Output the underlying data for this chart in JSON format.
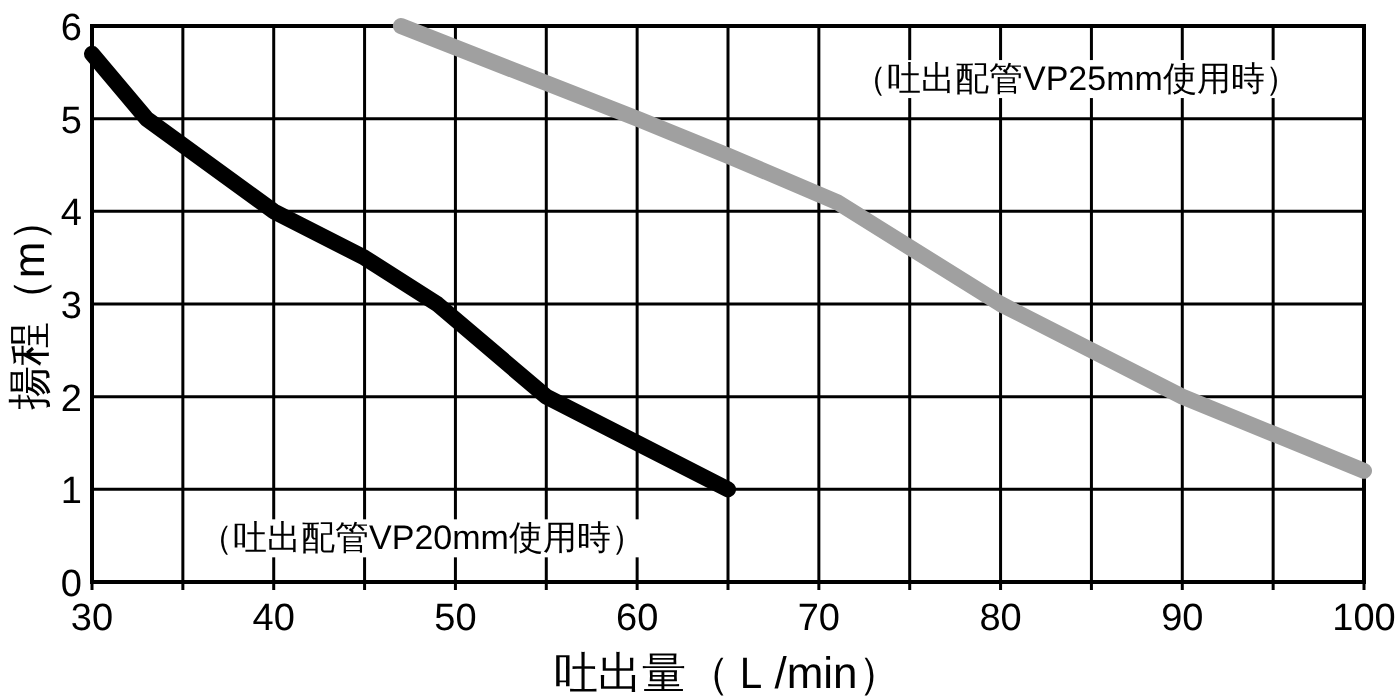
{
  "chart_data": {
    "type": "line",
    "xlabel": "吐出量（Ｌ/min）",
    "ylabel": "揚程（m）",
    "xlim": [
      30,
      100
    ],
    "ylim": [
      0,
      6
    ],
    "xticks": [
      30,
      {
        "value": 35,
        "label": null
      },
      40,
      {
        "value": 45,
        "label": null
      },
      50,
      {
        "value": 55,
        "label": null
      },
      60,
      {
        "value": 65,
        "label": null
      },
      70,
      {
        "value": 75,
        "label": null
      },
      80,
      {
        "value": 85,
        "label": null
      },
      90,
      {
        "value": 95,
        "label": null
      },
      100
    ],
    "yticks": [
      0,
      1,
      2,
      3,
      4,
      5,
      6
    ],
    "grid": true,
    "marker": "none",
    "line_style": "solid",
    "series": [
      {
        "name": "（吐出配管VP20mm使用時）",
        "color": "#000000",
        "x": [
          30,
          33,
          40,
          45,
          49,
          55,
          60,
          65
        ],
        "values": [
          5.7,
          5,
          4,
          3.5,
          3,
          2,
          1.5,
          1
        ]
      },
      {
        "name": "（吐出配管VP25mm使用時）",
        "color": "#a0a0a0",
        "x": [
          47,
          60,
          65,
          71,
          80,
          90,
          100
        ],
        "values": [
          6,
          5,
          4.6,
          4.1,
          3,
          2,
          1.2
        ]
      }
    ]
  }
}
